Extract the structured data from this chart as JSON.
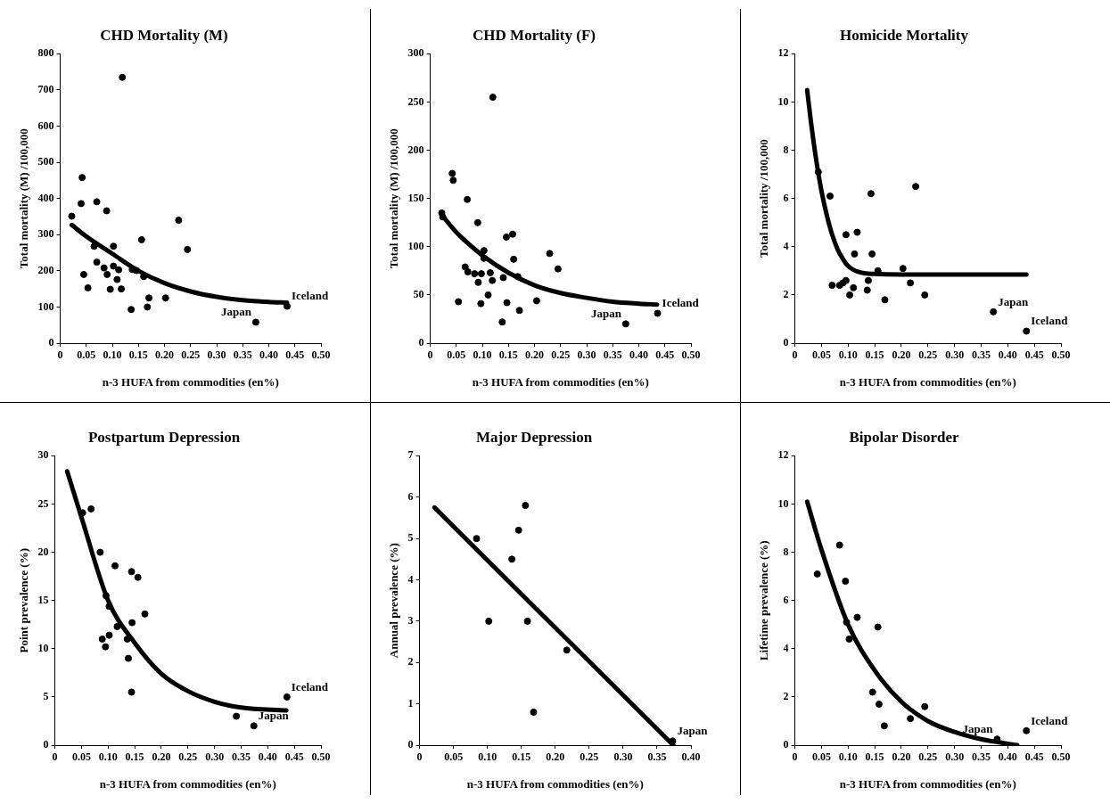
{
  "chart_data": [
    {
      "type": "scatter",
      "title": "CHD Mortality (M)",
      "xlabel": "n-3 HUFA from commodities (en%)",
      "ylabel": "Total mortality (M) /100,000",
      "marker": "circle",
      "xlim": [
        0,
        0.5
      ],
      "xticks": [
        0,
        0.05,
        {
          "value": 0.1,
          "label": "0.10"
        },
        0.15,
        {
          "value": 0.2,
          "label": "0.20"
        },
        0.25,
        {
          "value": 0.3,
          "label": "0.30"
        },
        0.35,
        {
          "value": 0.4,
          "label": "0.40"
        },
        0.45,
        {
          "value": 0.5,
          "label": "0.50"
        }
      ],
      "ylim": [
        0,
        800
      ],
      "yticks": [
        0,
        100,
        200,
        300,
        400,
        500,
        600,
        700,
        800
      ],
      "series": [
        {
          "color": "#000000",
          "x": [
            0.022,
            0.042,
            0.04,
            0.07,
            0.089,
            0.045,
            0.053,
            0.065,
            0.07,
            0.084,
            0.09,
            0.096,
            0.102,
            0.102,
            0.112,
            0.109,
            0.117,
            0.119,
            0.136,
            0.138,
            0.146,
            0.156,
            0.16,
            0.167,
            0.17,
            0.202,
            0.227,
            0.244,
            0.375,
            0.435
          ],
          "values": [
            351,
            458,
            386,
            391,
            366,
            190,
            153,
            268,
            224,
            208,
            190,
            149,
            213,
            268,
            203,
            176,
            150,
            735,
            93,
            204,
            201,
            286,
            184,
            100,
            125,
            125,
            340,
            259,
            58,
            102
          ]
        },
        {
          "type": "line",
          "marker": "none",
          "color": "#000000",
          "x": [
            0.022,
            0.05,
            0.1,
            0.15,
            0.2,
            0.25,
            0.3,
            0.35,
            0.4,
            0.435
          ],
          "values": [
            327,
            295,
            247,
            200,
            166,
            143,
            128,
            119,
            114,
            112
          ]
        }
      ],
      "annotations": [
        {
          "text": "Iceland",
          "x": 0.435,
          "y": 102
        },
        {
          "text": "Japan",
          "x": 0.375,
          "y": 58
        }
      ]
    },
    {
      "type": "scatter",
      "title": "CHD Mortality (F)",
      "xlabel": "n-3 HUFA from commodities (en%)",
      "ylabel": "Total mortality (M) /100,000",
      "marker": "circle",
      "xlim": [
        0,
        0.5
      ],
      "xticks": [
        0,
        0.05,
        {
          "value": 0.1,
          "label": "0.10"
        },
        0.15,
        {
          "value": 0.2,
          "label": "0.20"
        },
        0.25,
        {
          "value": 0.3,
          "label": "0.30"
        },
        0.35,
        {
          "value": 0.4,
          "label": "0.40"
        },
        0.45,
        {
          "value": 0.5,
          "label": "0.50"
        }
      ],
      "ylim": [
        0,
        300
      ],
      "yticks": [
        0,
        50,
        100,
        150,
        200,
        250,
        300
      ],
      "series": [
        {
          "color": "#000000",
          "x": [
            0.022,
            0.024,
            0.042,
            0.044,
            0.054,
            0.067,
            0.071,
            0.072,
            0.085,
            0.091,
            0.092,
            0.097,
            0.098,
            0.103,
            0.103,
            0.111,
            0.115,
            0.119,
            0.12,
            0.138,
            0.14,
            0.146,
            0.147,
            0.158,
            0.16,
            0.168,
            0.171,
            0.204,
            0.229,
            0.245,
            0.375,
            0.436
          ],
          "values": [
            135,
            131,
            176,
            169,
            43,
            79,
            149,
            74,
            72,
            125,
            63,
            41,
            72,
            96,
            88,
            50,
            73,
            65,
            255,
            22,
            68,
            110,
            42,
            113,
            87,
            69,
            34,
            44,
            93,
            77,
            20,
            31
          ]
        },
        {
          "type": "line",
          "marker": "none",
          "color": "#000000",
          "x": [
            0.022,
            0.05,
            0.1,
            0.15,
            0.2,
            0.25,
            0.3,
            0.35,
            0.4,
            0.435
          ],
          "values": [
            133,
            115,
            91,
            73,
            60,
            52,
            47,
            43,
            41,
            40
          ]
        }
      ],
      "annotations": [
        {
          "text": "Iceland",
          "x": 0.436,
          "y": 31
        },
        {
          "text": "Japan",
          "x": 0.375,
          "y": 20
        }
      ]
    },
    {
      "type": "scatter",
      "title": "Homicide Mortality",
      "xlabel": "n-3 HUFA from commodities (en%)",
      "ylabel": "Total mortality /100,000",
      "marker": "circle",
      "xlim": [
        0,
        0.5
      ],
      "xticks": [
        0,
        0.05,
        {
          "value": 0.1,
          "label": "0.10"
        },
        0.15,
        {
          "value": 0.2,
          "label": "0.20"
        },
        0.25,
        {
          "value": 0.3,
          "label": "0.30"
        },
        0.35,
        {
          "value": 0.4,
          "label": "0.40"
        },
        0.45,
        {
          "value": 0.5,
          "label": "0.50"
        }
      ],
      "ylim": [
        0,
        12
      ],
      "yticks": [
        0,
        2,
        4,
        6,
        8,
        10,
        12
      ],
      "series": [
        {
          "color": "#000000",
          "x": [
            0.044,
            0.066,
            0.07,
            0.084,
            0.09,
            0.096,
            0.096,
            0.103,
            0.11,
            0.112,
            0.117,
            0.136,
            0.138,
            0.143,
            0.145,
            0.156,
            0.169,
            0.203,
            0.217,
            0.227,
            0.244,
            0.373,
            0.435
          ],
          "values": [
            7.1,
            6.1,
            2.4,
            2.4,
            2.5,
            2.6,
            4.5,
            2.0,
            2.3,
            3.7,
            4.6,
            2.2,
            2.6,
            6.2,
            3.7,
            3.0,
            1.8,
            3.1,
            2.5,
            6.5,
            2.0,
            1.3,
            0.5
          ]
        },
        {
          "type": "line",
          "marker": "none",
          "color": "#000000",
          "x": [
            0.023,
            0.03,
            0.04,
            0.05,
            0.06,
            0.07,
            0.08,
            0.09,
            0.1,
            0.12,
            0.15,
            0.2,
            0.3,
            0.435
          ],
          "values": [
            10.5,
            9.2,
            7.6,
            6.3,
            5.3,
            4.5,
            3.9,
            3.5,
            3.2,
            2.95,
            2.87,
            2.85,
            2.85,
            2.85
          ]
        }
      ],
      "annotations": [
        {
          "text": "Iceland",
          "x": 0.435,
          "y": 0.5
        },
        {
          "text": "Japan",
          "x": 0.373,
          "y": 1.3
        }
      ]
    },
    {
      "type": "scatter",
      "title": "Postpartum Depression",
      "xlabel": "n-3 HUFA from commodities (en%)",
      "ylabel": "Point prevalence (%)",
      "marker": "circle",
      "xlim": [
        0,
        0.5
      ],
      "xticks": [
        0,
        0.05,
        {
          "value": 0.1,
          "label": "0.10"
        },
        0.15,
        {
          "value": 0.2,
          "label": "0.20"
        },
        0.25,
        {
          "value": 0.3,
          "label": "0.30"
        },
        0.35,
        {
          "value": 0.4,
          "label": "0.40"
        },
        0.45,
        {
          "value": 0.5,
          "label": "0.50"
        }
      ],
      "ylim": [
        0,
        30
      ],
      "yticks": [
        0,
        5,
        10,
        15,
        20,
        25,
        30
      ],
      "series": [
        {
          "color": "#000000",
          "x": [
            0.052,
            0.068,
            0.085,
            0.089,
            0.095,
            0.096,
            0.102,
            0.102,
            0.113,
            0.117,
            0.136,
            0.138,
            0.144,
            0.145,
            0.144,
            0.156,
            0.169,
            0.341,
            0.374,
            0.436
          ],
          "values": [
            24.1,
            24.5,
            20.0,
            11.0,
            10.2,
            15.5,
            14.4,
            11.4,
            18.6,
            12.3,
            11.0,
            9.0,
            18.0,
            12.7,
            5.5,
            17.4,
            13.6,
            3.0,
            2.0,
            5.0
          ]
        },
        {
          "type": "line",
          "marker": "none",
          "color": "#000000",
          "x": [
            0.023,
            0.05,
            0.1,
            0.15,
            0.2,
            0.25,
            0.3,
            0.35,
            0.435
          ],
          "values": [
            28.4,
            23.6,
            15,
            10.6,
            7.4,
            5.6,
            4.5,
            3.9,
            3.6
          ]
        }
      ],
      "annotations": [
        {
          "text": "Iceland",
          "x": 0.436,
          "y": 5.0
        },
        {
          "text": "Japan",
          "x": 0.374,
          "y": 2.0
        }
      ]
    },
    {
      "type": "scatter",
      "title": "Major Depression",
      "xlabel": "n-3 HUFA from commodities (en%)",
      "ylabel": "Annual prevalence (%)",
      "marker": "circle",
      "xlim": [
        0,
        0.4
      ],
      "xticks": [
        0,
        0.05,
        {
          "value": 0.1,
          "label": "0.10"
        },
        0.15,
        {
          "value": 0.2,
          "label": "0.20"
        },
        0.25,
        {
          "value": 0.3,
          "label": "0.30"
        },
        0.35,
        {
          "value": 0.4,
          "label": "0.40"
        }
      ],
      "ylim": [
        0,
        7
      ],
      "yticks": [
        0,
        1,
        2,
        3,
        4,
        5,
        6,
        7
      ],
      "series": [
        {
          "color": "#000000",
          "x": [
            0.084,
            0.102,
            0.136,
            0.146,
            0.156,
            0.159,
            0.168,
            0.217,
            0.373
          ],
          "values": [
            5.0,
            3.0,
            4.5,
            5.2,
            5.8,
            3.0,
            0.8,
            2.3,
            0.1
          ]
        },
        {
          "type": "line",
          "marker": "none",
          "color": "#000000",
          "x": [
            0.022,
            0.374
          ],
          "values": [
            5.75,
            0
          ]
        }
      ],
      "annotations": [
        {
          "text": "Japan",
          "x": 0.373,
          "y": 0.1
        }
      ]
    },
    {
      "type": "scatter",
      "title": "Bipolar Disorder",
      "xlabel": "n-3 HUFA from commodities (en%)",
      "ylabel": "Lifetime prevalence (%)",
      "marker": "circle",
      "xlim": [
        0,
        0.5
      ],
      "xticks": [
        0,
        0.05,
        {
          "value": 0.1,
          "label": "0.10"
        },
        0.15,
        {
          "value": 0.2,
          "label": "0.20"
        },
        0.25,
        {
          "value": 0.3,
          "label": "0.30"
        },
        0.35,
        {
          "value": 0.4,
          "label": "0.40"
        },
        0.45,
        {
          "value": 0.5,
          "label": "0.50"
        }
      ],
      "ylim": [
        0,
        12
      ],
      "yticks": [
        0,
        2,
        4,
        6,
        8,
        10,
        12
      ],
      "series": [
        {
          "color": "#000000",
          "x": [
            0.042,
            0.084,
            0.095,
            0.097,
            0.102,
            0.117,
            0.146,
            0.156,
            0.158,
            0.168,
            0.217,
            0.244,
            0.38,
            0.435
          ],
          "values": [
            7.1,
            8.3,
            6.8,
            5.1,
            4.4,
            5.3,
            2.2,
            4.9,
            1.7,
            0.8,
            1.1,
            1.6,
            0.25,
            0.6
          ]
        },
        {
          "type": "line",
          "marker": "none",
          "color": "#000000",
          "x": [
            0.023,
            0.05,
            0.1,
            0.15,
            0.2,
            0.25,
            0.3,
            0.35,
            0.418
          ],
          "values": [
            10.1,
            8.1,
            5,
            3.1,
            1.8,
            1.0,
            0.55,
            0.25,
            0
          ]
        }
      ],
      "annotations": [
        {
          "text": "Iceland",
          "x": 0.435,
          "y": 0.6
        },
        {
          "text": "Japan",
          "x": 0.38,
          "y": 0.25
        }
      ]
    }
  ]
}
